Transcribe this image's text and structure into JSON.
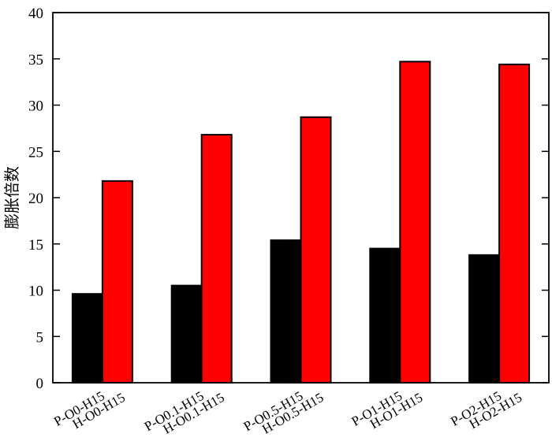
{
  "chart_data": {
    "type": "bar",
    "categories": [
      {
        "p": "P-O0-H15",
        "h": "H-O0-H15"
      },
      {
        "p": "P-O0.1-H15",
        "h": "H-O0.1-H15"
      },
      {
        "p": "P-O0.5-H15",
        "h": "H-O0.5-H15"
      },
      {
        "p": "P-O1-H15",
        "h": "H-O1-H15"
      },
      {
        "p": "P-O2-H15",
        "h": "H-O2-H15"
      }
    ],
    "series": [
      {
        "values": [
          9.6,
          10.5,
          15.4,
          14.5,
          13.8
        ],
        "color": "#000000"
      },
      {
        "values": [
          21.8,
          26.8,
          28.7,
          34.7,
          34.4
        ],
        "color": "#ff0000"
      }
    ],
    "title": "",
    "xlabel": "",
    "ylabel": "膨胀倍数",
    "ylim": [
      0,
      40
    ],
    "yticks": [
      "0",
      "5",
      "10",
      "15",
      "20",
      "25",
      "30",
      "35",
      "40"
    ],
    "grid": false,
    "legend": "none"
  }
}
